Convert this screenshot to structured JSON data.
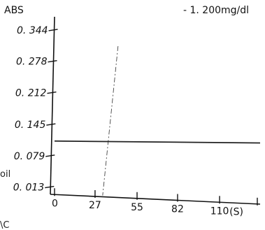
{
  "header_fragment": "- 1. 200mg/dl",
  "side_fragments": {
    "left": "oil",
    "bottom": "\\C"
  },
  "colors": {
    "background": "#ffffff",
    "ink": "#111111",
    "series": "#222222"
  },
  "chart_data": {
    "type": "line",
    "title": "",
    "ylabel": "ABS",
    "xlabel": "",
    "x_unit_label": "(S)",
    "xlim": [
      0,
      137
    ],
    "ylim": [
      -0.02,
      0.366
    ],
    "x_ticks": [
      {
        "value": 0,
        "label": "0"
      },
      {
        "value": 27,
        "label": "27"
      },
      {
        "value": 55,
        "label": "55"
      },
      {
        "value": 82,
        "label": "82"
      },
      {
        "value": 110,
        "label": "110"
      }
    ],
    "y_ticks": [
      {
        "value": 0.344,
        "label": "0. 344"
      },
      {
        "value": 0.278,
        "label": "0. 278"
      },
      {
        "value": 0.212,
        "label": "0. 212"
      },
      {
        "value": 0.145,
        "label": "0. 145"
      },
      {
        "value": 0.079,
        "label": "0. 079"
      },
      {
        "value": 0.013,
        "label": "0. 013"
      }
    ],
    "series": [
      {
        "x": [
          0,
          137
        ],
        "y": [
          0.11,
          0.106
        ]
      }
    ],
    "marker_x": 33,
    "grid": false,
    "legend": "none"
  }
}
